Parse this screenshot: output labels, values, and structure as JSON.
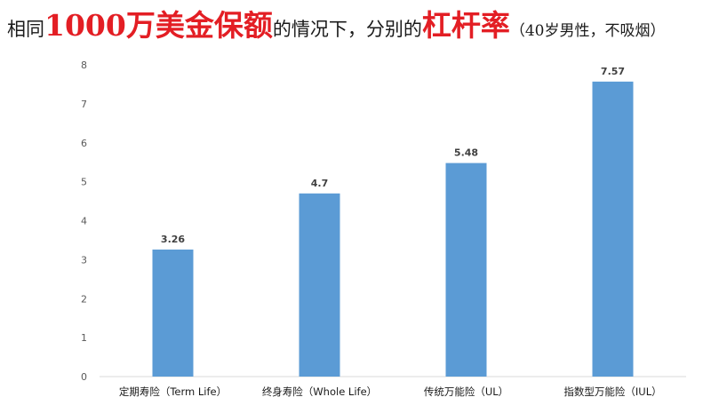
{
  "title": {
    "part1": "相同",
    "part2": "1000万美金保额",
    "part3": "的情况下，分别的",
    "part4": "杠杆率",
    "part5": "（40岁男性，不吸烟）"
  },
  "colors": {
    "bar": "#5b9bd5",
    "title_highlight": "#e31e24",
    "axis": "#d9d9d9"
  },
  "chart_data": {
    "type": "bar",
    "categories": [
      "定期寿险（Term Life）",
      "终身寿险（Whole Life）",
      "传统万能险（UL）",
      "指数型万能险（IUL）"
    ],
    "values": [
      3.26,
      4.7,
      5.48,
      7.57
    ],
    "data_labels": [
      "3.26",
      "4.7",
      "5.48",
      "7.57"
    ],
    "yticks": [
      "0",
      "1",
      "2",
      "3",
      "4",
      "5",
      "6",
      "7",
      "8"
    ],
    "ylim": [
      0,
      8
    ],
    "grid": false,
    "legend": "none"
  }
}
